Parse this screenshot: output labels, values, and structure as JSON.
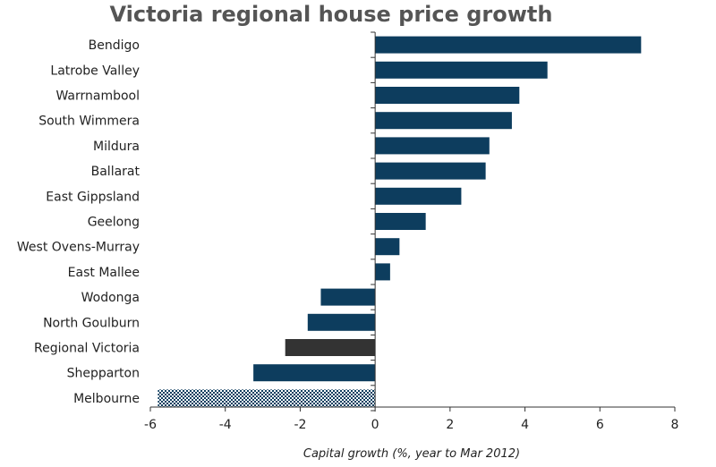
{
  "chart_data": {
    "type": "bar",
    "orientation": "horizontal",
    "title": "Victoria regional house price growth",
    "xlabel": "Capital growth (%, year to Mar 2012)",
    "ylabel": "",
    "xlim": [
      -6,
      8
    ],
    "xticks": [
      -6,
      -4,
      -2,
      0,
      2,
      4,
      6,
      8
    ],
    "grid": false,
    "legend": "none",
    "categories": [
      "Bendigo",
      "Latrobe Valley",
      "Warrnambool",
      "South Wimmera",
      "Mildura",
      "Ballarat",
      "East Gippsland",
      "Geelong",
      "West Ovens-Murray",
      "East Mallee",
      "Wodonga",
      "North Goulburn",
      "Regional Victoria",
      "Shepparton",
      "Melbourne"
    ],
    "values": [
      7.1,
      4.6,
      3.85,
      3.65,
      3.05,
      2.95,
      2.3,
      1.35,
      0.65,
      0.4,
      -1.45,
      -1.8,
      -2.4,
      -3.25,
      -5.8
    ],
    "bar_styles": [
      "solid",
      "solid",
      "solid",
      "solid",
      "solid",
      "solid",
      "solid",
      "solid",
      "solid",
      "solid",
      "solid",
      "solid",
      "dark",
      "solid",
      "checkered"
    ],
    "colors": {
      "bar": "#0d3d5e",
      "highlight": "#333333",
      "checker": "#0d3d5e",
      "axis": "#333333",
      "title": "#555555"
    }
  }
}
